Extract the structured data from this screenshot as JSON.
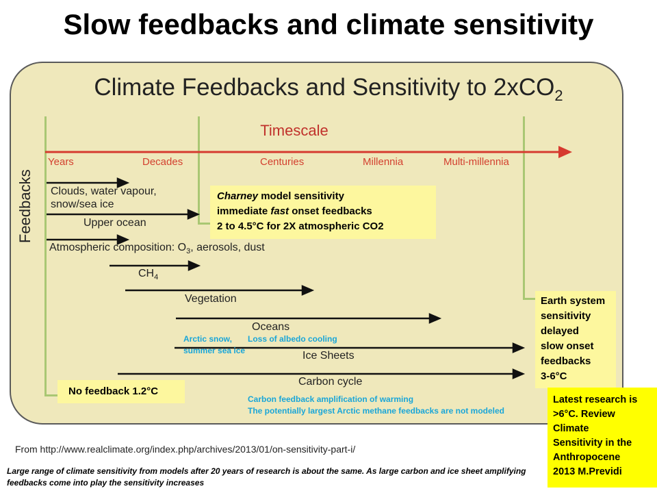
{
  "slide_title": "Slow feedbacks and climate sensitivity",
  "diagram": {
    "title": "Climate Feedbacks and Sensitivity to 2xCO",
    "title_subscript": "2",
    "timescale_title": "Timescale",
    "timescale_ticks": [
      "Years",
      "Decades",
      "Centuries",
      "Millennia",
      "Multi-millennia"
    ],
    "y_axis_label": "Feedbacks",
    "feedbacks": {
      "clouds": "Clouds, water vapour,",
      "clouds_2": "snow/sea ice",
      "upper_ocean": "Upper ocean",
      "atmos_prefix": "Atmospheric composition: O",
      "atmos_sub": "3",
      "atmos_suffix": ", aerosols, dust",
      "ch4_main": "CH",
      "ch4_sub": "4",
      "vegetation": "Vegetation",
      "oceans": "Oceans",
      "ice_sheets": "Ice Sheets",
      "carbon_cycle": "Carbon cycle"
    },
    "charney_box": {
      "line1_italic": "Charney",
      "line1_rest": " model sensitivity",
      "line2_pre": "immediate ",
      "line2_italic": "fast",
      "line2_post": " onset feedbacks",
      "line3": "2 to  4.5°C  for 2X atmospheric CO2"
    },
    "earth_system_box": [
      "Earth system",
      "sensitivity",
      "delayed",
      "slow onset",
      "feedbacks",
      "3-6°C"
    ],
    "no_feedback_box": "No feedback  1.2°C",
    "annotations": {
      "arctic_snow": "Arctic snow,",
      "summer_sea_ice": "summer sea ice",
      "loss_albedo": "Loss of albedo cooling",
      "carbon_amp": "Carbon feedback amplification of warming",
      "methane": "The potentially largest Arctic methane feedbacks  are not modeled"
    }
  },
  "source": "From    http://www.realclimate.org/index.php/archives/2013/01/on-sensitivity-part-i/",
  "caption": "Large range of climate sensitivity from models after 20 years of research is about the same. As large carbon and ice sheet  amplifying feedbacks come into play the sensitivity increases",
  "latest_box": [
    "Latest research is",
    ">6°C. Review",
    "Climate",
    "Sensitivity in the",
    "Anthropocene",
    "2013 M.Previdi"
  ],
  "colors": {
    "panel": "#efe8bb",
    "timescale_arrow": "#d63a2f",
    "guide_lines": "#a9c773",
    "highlight": "#fdf79e",
    "latest": "#ffff00",
    "annotation": "#1aa6d8"
  }
}
